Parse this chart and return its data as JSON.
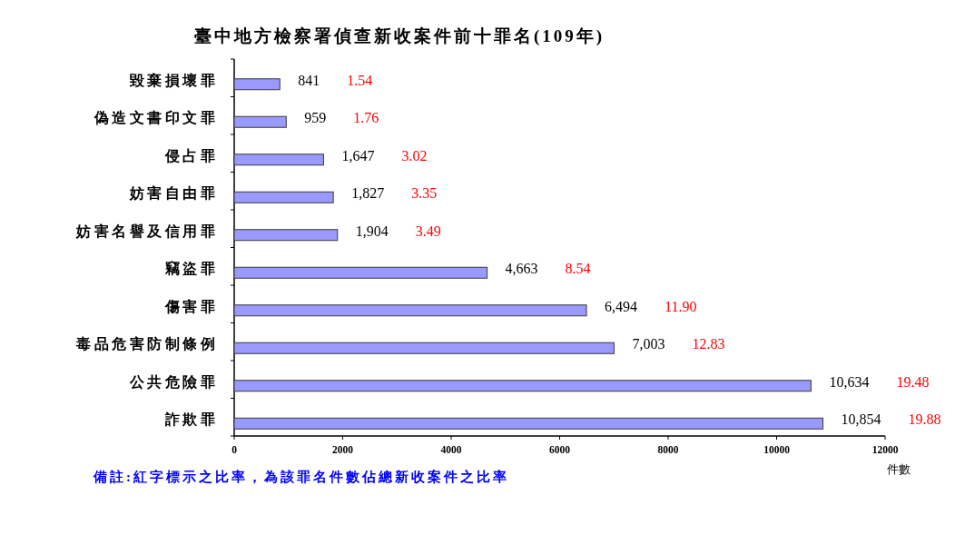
{
  "chart_data": {
    "type": "bar",
    "orientation": "horizontal",
    "title": "臺中地方檢察署偵查新收案件前十罪名(109年)",
    "xlabel": "件數",
    "categories": [
      "毀棄損壞罪",
      "偽造文書印文罪",
      "侵占罪",
      "妨害自由罪",
      "妨害名譽及信用罪",
      "竊盜罪",
      "傷害罪",
      "毒品危害防制條例",
      "公共危險罪",
      "詐欺罪"
    ],
    "values": [
      841,
      959,
      1647,
      1827,
      1904,
      4663,
      6494,
      7003,
      10634,
      10854
    ],
    "value_labels": [
      "841",
      "959",
      "1,647",
      "1,827",
      "1,904",
      "4,663",
      "6,494",
      "7,003",
      "10,634",
      "10,854"
    ],
    "color": "#9999ff",
    "xlim": [
      0,
      12000
    ],
    "xticks": [
      0,
      2000,
      4000,
      6000,
      8000,
      10000,
      12000
    ],
    "annotations": [
      "1.54",
      "1.76",
      "3.02",
      "3.35",
      "3.49",
      "8.54",
      "11.90",
      "12.83",
      "19.48",
      "19.88",
      "備註:紅字標示之比率，為該罪名件數佔總新收案件之比率"
    ]
  }
}
